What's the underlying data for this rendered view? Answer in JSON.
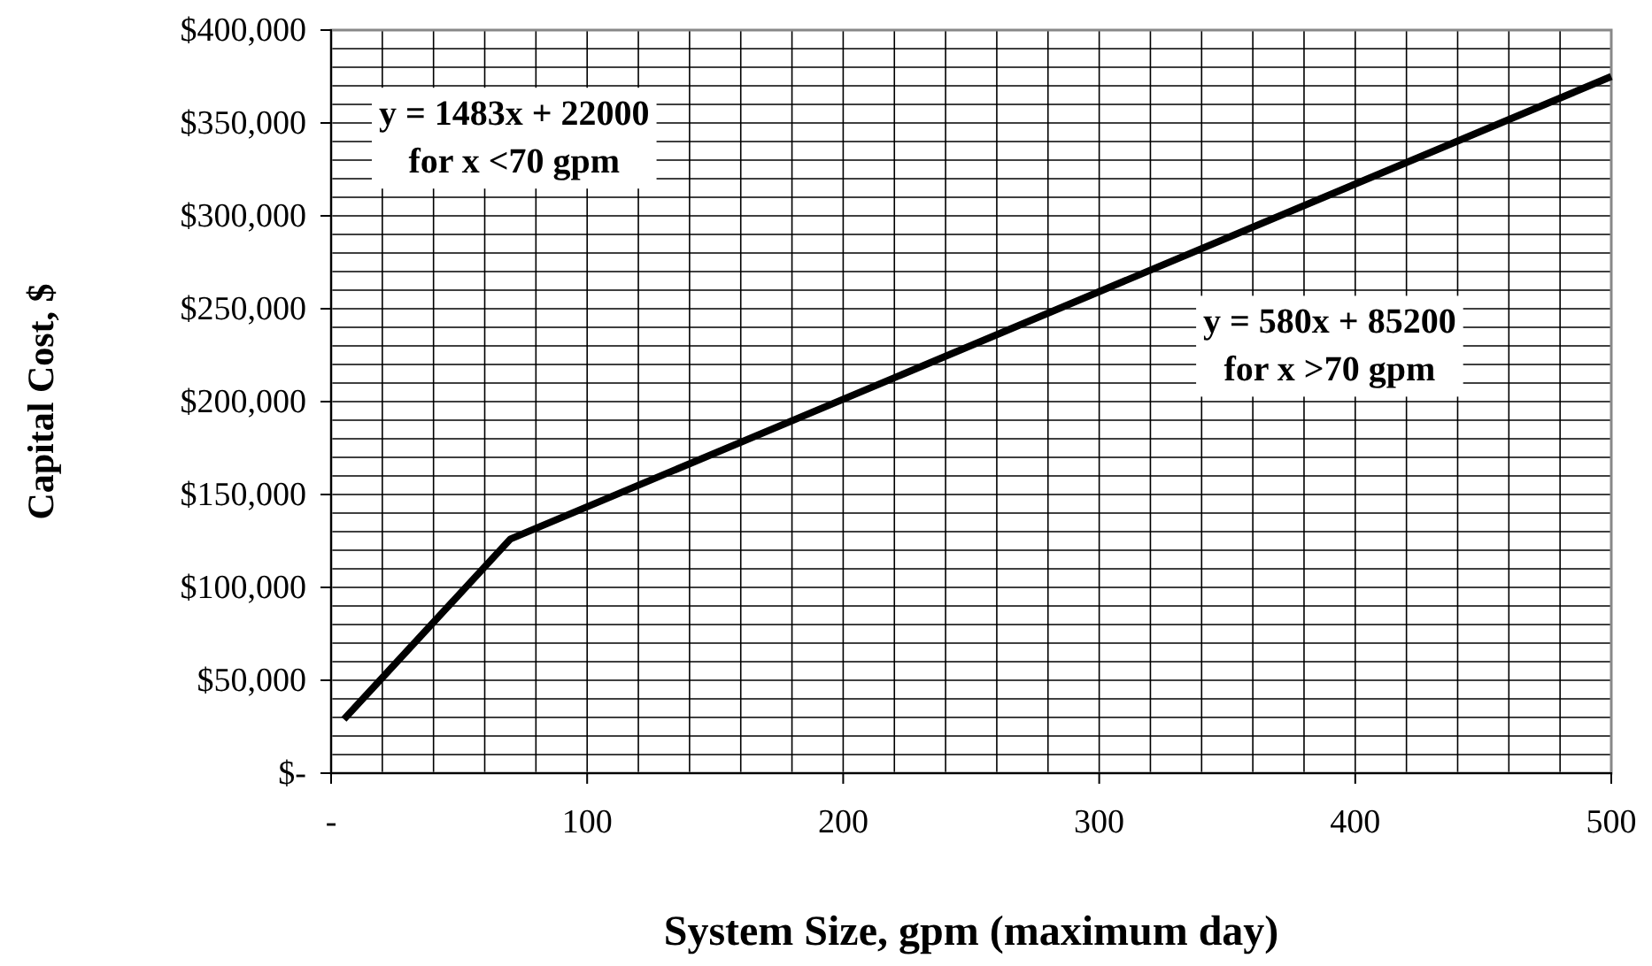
{
  "chart_data": {
    "type": "line",
    "xlabel": "System Size, gpm (maximum day)",
    "ylabel": "Capital Cost, $",
    "x": [
      5,
      70,
      500
    ],
    "series": [
      {
        "color": "#000000",
        "values": [
          29000,
          126000,
          375000
        ]
      }
    ],
    "xlim": [
      0,
      500
    ],
    "xticks": [
      {
        "value": 0,
        "label": "-"
      },
      {
        "value": 20,
        "label": null
      },
      {
        "value": 40,
        "label": null
      },
      {
        "value": 60,
        "label": null
      },
      {
        "value": 80,
        "label": null
      },
      100,
      {
        "value": 120,
        "label": null
      },
      {
        "value": 140,
        "label": null
      },
      {
        "value": 160,
        "label": null
      },
      {
        "value": 180,
        "label": null
      },
      200,
      {
        "value": 220,
        "label": null
      },
      {
        "value": 240,
        "label": null
      },
      {
        "value": 260,
        "label": null
      },
      {
        "value": 280,
        "label": null
      },
      300,
      {
        "value": 320,
        "label": null
      },
      {
        "value": 340,
        "label": null
      },
      {
        "value": 360,
        "label": null
      },
      {
        "value": 380,
        "label": null
      },
      400,
      {
        "value": 420,
        "label": null
      },
      {
        "value": 440,
        "label": null
      },
      {
        "value": 460,
        "label": null
      },
      {
        "value": 480,
        "label": null
      },
      500
    ],
    "ylim": [
      0,
      400000
    ],
    "yticks": [
      {
        "value": 0,
        "label": "$-"
      },
      {
        "value": 10000,
        "label": null
      },
      {
        "value": 20000,
        "label": null
      },
      {
        "value": 30000,
        "label": null
      },
      {
        "value": 40000,
        "label": null
      },
      {
        "value": 50000,
        "label": "$50,000"
      },
      {
        "value": 60000,
        "label": null
      },
      {
        "value": 70000,
        "label": null
      },
      {
        "value": 80000,
        "label": null
      },
      {
        "value": 90000,
        "label": null
      },
      {
        "value": 100000,
        "label": "$100,000"
      },
      {
        "value": 110000,
        "label": null
      },
      {
        "value": 120000,
        "label": null
      },
      {
        "value": 130000,
        "label": null
      },
      {
        "value": 140000,
        "label": null
      },
      {
        "value": 150000,
        "label": "$150,000"
      },
      {
        "value": 160000,
        "label": null
      },
      {
        "value": 170000,
        "label": null
      },
      {
        "value": 180000,
        "label": null
      },
      {
        "value": 190000,
        "label": null
      },
      {
        "value": 200000,
        "label": "$200,000"
      },
      {
        "value": 210000,
        "label": null
      },
      {
        "value": 220000,
        "label": null
      },
      {
        "value": 230000,
        "label": null
      },
      {
        "value": 240000,
        "label": null
      },
      {
        "value": 250000,
        "label": "$250,000"
      },
      {
        "value": 260000,
        "label": null
      },
      {
        "value": 270000,
        "label": null
      },
      {
        "value": 280000,
        "label": null
      },
      {
        "value": 290000,
        "label": null
      },
      {
        "value": 300000,
        "label": "$300,000"
      },
      {
        "value": 310000,
        "label": null
      },
      {
        "value": 320000,
        "label": null
      },
      {
        "value": 330000,
        "label": null
      },
      {
        "value": 340000,
        "label": null
      },
      {
        "value": 350000,
        "label": "$350,000"
      },
      {
        "value": 360000,
        "label": null
      },
      {
        "value": 370000,
        "label": null
      },
      {
        "value": 380000,
        "label": null
      },
      {
        "value": 390000,
        "label": null
      },
      {
        "value": 400000,
        "label": "$400,000"
      }
    ],
    "grid": true,
    "line_style": "solid",
    "marker": "none",
    "annotations": [
      "y = 1483x + 22000\nfor x <70 gpm",
      "y = 580x + 85200\nfor x >70 gpm"
    ]
  }
}
